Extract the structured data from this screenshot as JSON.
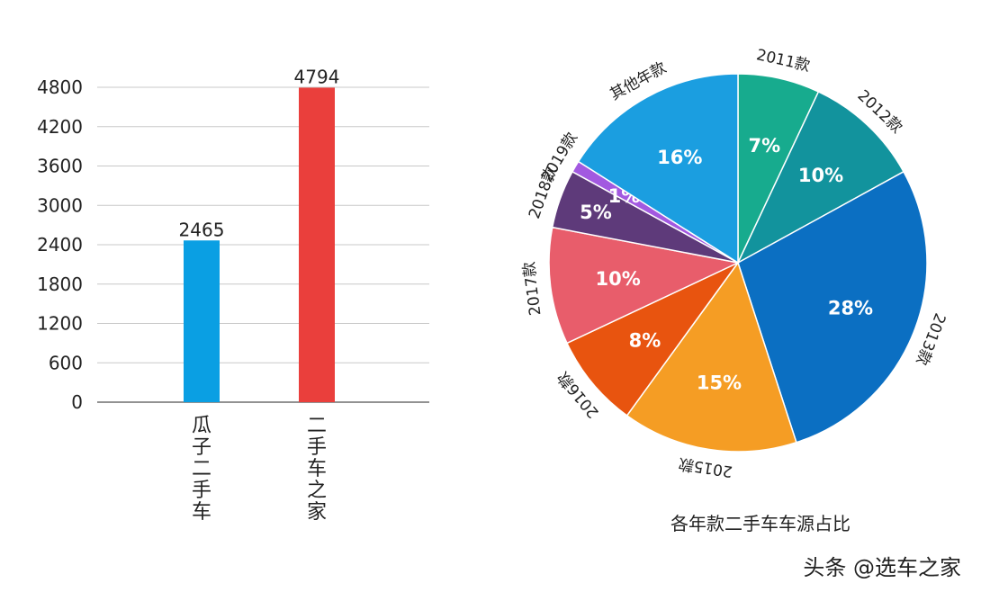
{
  "colors": {
    "bar_guazi": "#0a9fe3",
    "bar_che168": "#ea3f3c",
    "grid": "#c8c8c8",
    "axis": "#6e6e6e",
    "text": "#222222",
    "pie_text": "#ffffff"
  },
  "chart_data": [
    {
      "type": "bar",
      "title": "",
      "xlabel": "",
      "ylabel": "",
      "categories": [
        "瓜子二手车",
        "二手车之家"
      ],
      "values": [
        2465,
        4794
      ],
      "data_labels": [
        "2465",
        "4794"
      ],
      "yticks": [
        0,
        600,
        1200,
        1800,
        2400,
        3000,
        3600,
        4200,
        4800
      ],
      "ytick_labels": [
        "0",
        "600",
        "1200",
        "1800",
        "2400",
        "3000",
        "3600",
        "4200",
        "4800"
      ],
      "ylim": [
        0,
        4800
      ],
      "grid": true,
      "legend": "none"
    },
    {
      "type": "pie",
      "title": "各年款二手车车源占比",
      "slices": [
        {
          "label": "2011款",
          "value": 7,
          "value_label": "7%",
          "color": "#17ab8e"
        },
        {
          "label": "2012款",
          "value": 10,
          "value_label": "10%",
          "color": "#12939d"
        },
        {
          "label": "2013款",
          "value": 28,
          "value_label": "28%",
          "color": "#0b6fc2"
        },
        {
          "label": "2015款",
          "value": 15,
          "value_label": "15%",
          "color": "#f59d24"
        },
        {
          "label": "2016款",
          "value": 8,
          "value_label": "8%",
          "color": "#e8540f"
        },
        {
          "label": "2017款",
          "value": 10,
          "value_label": "10%",
          "color": "#e85d6b"
        },
        {
          "label": "2018款",
          "value": 5,
          "value_label": "5%",
          "color": "#5e3a7a"
        },
        {
          "label": "2019款",
          "value": 1,
          "value_label": "1%",
          "color": "#a259e0"
        },
        {
          "label": "其他年款",
          "value": 16,
          "value_label": "16%",
          "color": "#1b9ee0"
        }
      ],
      "legend": "none"
    }
  ],
  "watermark": "头条 @选车之家"
}
